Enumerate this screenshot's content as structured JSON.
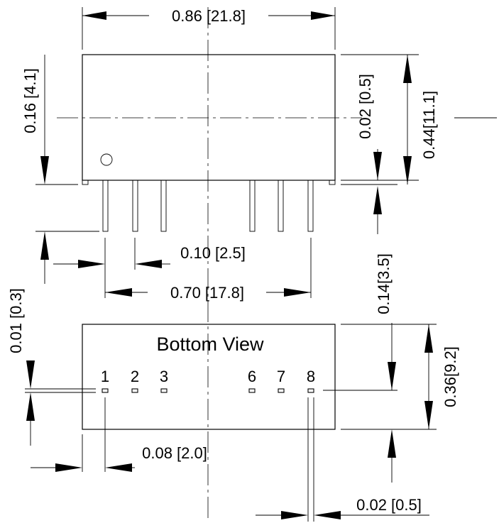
{
  "title": "Bottom View",
  "pins": [
    "1",
    "2",
    "3",
    "6",
    "7",
    "8"
  ],
  "dimensions": {
    "overall_width": "0.86 [21.8]",
    "standoff_height": "0.16 [4.1]",
    "pin_thickness_top": "0.02 [0.5]",
    "overall_height": "0.44[11.1]",
    "pin_pitch": "0.10 [2.5]",
    "pin_span": "0.70 [17.8]",
    "pin_length": "0.14[3.5]",
    "pin_offset_vertical": "0.01 [0.3]",
    "body_depth": "0.36[9.2]",
    "edge_to_pin1": "0.08 [2.0]",
    "pin_width": "0.02 [0.5]"
  }
}
